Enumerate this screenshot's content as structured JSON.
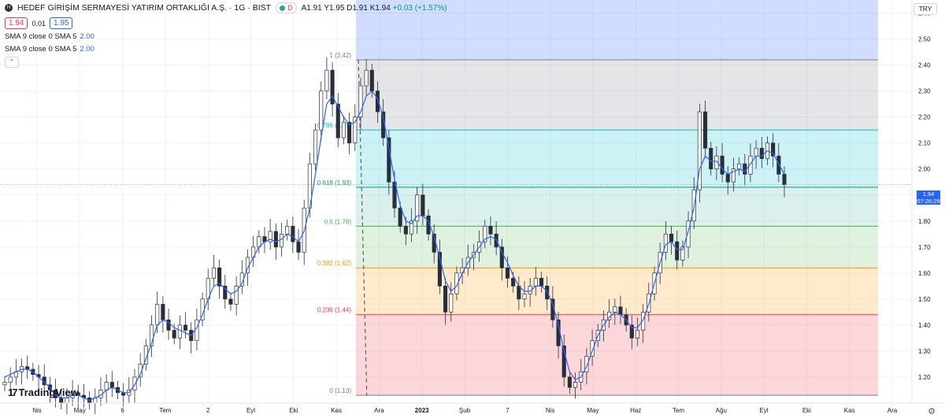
{
  "header": {
    "symbol_badge": "H",
    "title": "HEDEF GİRİŞİM SERMAYESİ YATIRIM ORTAKLIĞI A.Ş. · 1G · BIST",
    "ohlc": {
      "open_label": "A",
      "open": "1.91",
      "high_label": "Y",
      "high": "1.95",
      "low_label": "D",
      "low": "1.91",
      "close_label": "K",
      "close": "1.94",
      "change": "+0.03 (+1.57%)"
    },
    "sell_price": "1.94",
    "spread": "0.01",
    "buy_price": "1.95",
    "indicators": [
      {
        "label": "SMA 9 close 0 SMA 5",
        "value": "2.00"
      },
      {
        "label": "SMA 9 close 0 SMA 5",
        "value": "2.00"
      }
    ]
  },
  "currency": "TRY",
  "last_price_tag": {
    "price": "1.94",
    "countdown": "07:26:29"
  },
  "logo": {
    "text": "TradingView"
  },
  "colors": {
    "up": "#089981",
    "down": "#f23645",
    "sma": "#2962ff",
    "axis_text": "#131722"
  },
  "chart_data": {
    "type": "candlestick",
    "y_axis": {
      "min": 1.1,
      "max": 2.65,
      "ticks": [
        "1.20",
        "1.30",
        "1.40",
        "1.50",
        "1.60",
        "1.70",
        "1.80",
        "1.90",
        "2.00",
        "2.10",
        "2.20",
        "2.30",
        "2.40",
        "2.50",
        "2.60"
      ]
    },
    "x_axis": {
      "labels": [
        "Nis",
        "May",
        "6",
        "Tem",
        "2",
        "Eyl",
        "Eki",
        "Kas",
        "Ara",
        "2023",
        "Şub",
        "7",
        "Nis",
        "May",
        "Haz",
        "Tem",
        "Ağu",
        "Eyl",
        "Eki",
        "Kas",
        "Ara"
      ]
    },
    "fibonacci": [
      {
        "ratio": 1,
        "price": 2.42,
        "label": "1 (2.42)",
        "color": "#787b86",
        "fill": "rgba(120,123,134,0.2)"
      },
      {
        "ratio": 0.786,
        "price": 2.15,
        "label": "0.786 (2.15)",
        "color": "#00bcd4",
        "fill": "rgba(0,188,212,0.2)"
      },
      {
        "ratio": 0.618,
        "price": 1.93,
        "label": "0.618 (1.93)",
        "color": "#089981",
        "fill": "rgba(8,153,129,0.15)"
      },
      {
        "ratio": 0.5,
        "price": 1.78,
        "label": "0.5 (1.78)",
        "color": "#4caf50",
        "fill": "rgba(76,175,80,0.18)"
      },
      {
        "ratio": 0.382,
        "price": 1.62,
        "label": "0.382 (1.62)",
        "color": "#ff9800",
        "fill": "rgba(255,152,0,0.2)"
      },
      {
        "ratio": 0.236,
        "price": 1.44,
        "label": "0.236 (1.44)",
        "color": "#f23645",
        "fill": "rgba(242,54,69,0.2)"
      },
      {
        "ratio": 0,
        "price": 1.13,
        "label": "0 (1.13)",
        "color": "#787b86",
        "fill": ""
      }
    ],
    "fib_top_fill": "rgba(41,98,255,0.22)",
    "trendline": {
      "from": {
        "x": "Kas",
        "y": 2.42
      },
      "to": {
        "x": "Eki",
        "y": 1.13
      },
      "style": "dashed"
    },
    "current_price": 1.94,
    "closes": [
      1.18,
      1.2,
      1.22,
      1.24,
      1.23,
      1.21,
      1.2,
      1.17,
      1.15,
      1.12,
      1.1,
      1.12,
      1.14,
      1.13,
      1.12,
      1.1,
      1.12,
      1.15,
      1.18,
      1.16,
      1.14,
      1.13,
      1.15,
      1.2,
      1.25,
      1.32,
      1.4,
      1.48,
      1.42,
      1.38,
      1.35,
      1.4,
      1.38,
      1.34,
      1.42,
      1.5,
      1.58,
      1.62,
      1.55,
      1.5,
      1.48,
      1.55,
      1.6,
      1.66,
      1.7,
      1.74,
      1.72,
      1.76,
      1.7,
      1.75,
      1.78,
      1.72,
      1.68,
      1.85,
      2.02,
      2.15,
      2.3,
      2.38,
      2.25,
      2.12,
      2.18,
      2.1,
      2.2,
      2.32,
      2.38,
      2.3,
      2.22,
      2.12,
      1.95,
      1.85,
      1.78,
      1.75,
      1.8,
      1.9,
      1.82,
      1.75,
      1.68,
      1.55,
      1.45,
      1.52,
      1.6,
      1.62,
      1.66,
      1.68,
      1.72,
      1.78,
      1.75,
      1.7,
      1.62,
      1.58,
      1.55,
      1.5,
      1.52,
      1.55,
      1.58,
      1.55,
      1.5,
      1.42,
      1.32,
      1.2,
      1.16,
      1.18,
      1.22,
      1.28,
      1.34,
      1.38,
      1.42,
      1.45,
      1.47,
      1.44,
      1.4,
      1.35,
      1.38,
      1.45,
      1.52,
      1.6,
      1.68,
      1.75,
      1.72,
      1.65,
      1.7,
      1.8,
      1.92,
      2.22,
      2.08,
      2.0,
      2.05,
      1.98,
      1.95,
      2.0,
      2.02,
      1.98,
      2.05,
      2.08,
      2.04,
      2.1,
      2.05,
      1.98,
      1.94
    ],
    "sma": [
      1.2,
      1.21,
      1.22,
      1.23,
      1.23,
      1.22,
      1.2,
      1.18,
      1.16,
      1.13,
      1.12,
      1.12,
      1.13,
      1.13,
      1.12,
      1.11,
      1.12,
      1.13,
      1.15,
      1.16,
      1.15,
      1.14,
      1.14,
      1.17,
      1.21,
      1.27,
      1.33,
      1.4,
      1.42,
      1.41,
      1.39,
      1.38,
      1.37,
      1.36,
      1.39,
      1.44,
      1.5,
      1.55,
      1.56,
      1.54,
      1.52,
      1.53,
      1.56,
      1.62,
      1.66,
      1.7,
      1.72,
      1.73,
      1.72,
      1.73,
      1.75,
      1.74,
      1.72,
      1.76,
      1.85,
      1.98,
      2.12,
      2.25,
      2.28,
      2.24,
      2.2,
      2.17,
      2.18,
      2.22,
      2.28,
      2.3,
      2.27,
      2.2,
      2.08,
      1.96,
      1.86,
      1.8,
      1.79,
      1.82,
      1.82,
      1.8,
      1.74,
      1.66,
      1.57,
      1.53,
      1.55,
      1.6,
      1.64,
      1.67,
      1.7,
      1.73,
      1.74,
      1.73,
      1.68,
      1.64,
      1.59,
      1.55,
      1.53,
      1.53,
      1.55,
      1.55,
      1.53,
      1.48,
      1.4,
      1.3,
      1.22,
      1.19,
      1.2,
      1.24,
      1.3,
      1.36,
      1.4,
      1.43,
      1.45,
      1.44,
      1.42,
      1.39,
      1.39,
      1.42,
      1.48,
      1.56,
      1.64,
      1.71,
      1.72,
      1.69,
      1.69,
      1.76,
      1.85,
      2.0,
      2.05,
      2.03,
      2.03,
      2.0,
      1.98,
      1.99,
      2.0,
      1.99,
      2.02,
      2.05,
      2.05,
      2.07,
      2.06,
      2.02,
      1.98
    ]
  }
}
